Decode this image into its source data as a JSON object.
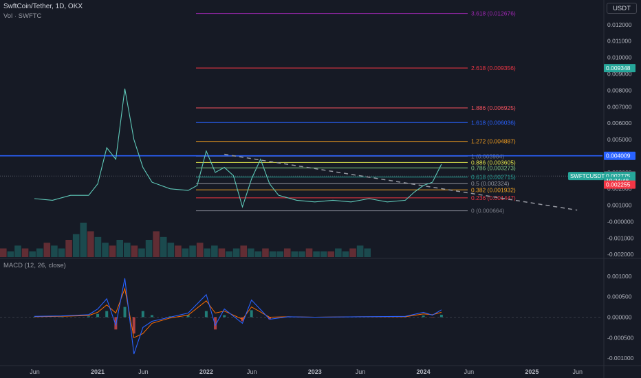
{
  "header": {
    "title": "SwftCoin/Tether, 1D, OKX",
    "volume_label": "Vol · SWFTC",
    "macd_label": "MACD (12, 26, close)",
    "unit": "USDT"
  },
  "colors": {
    "background": "#161a25",
    "price_line": "#5fc9b9",
    "up_candle": "#26a69a",
    "down_candle": "#ef5350",
    "macd_line": "#2962ff",
    "signal_line": "#ff6d00",
    "resistance_line": "#2962ff",
    "target_zone": "#1e5c55",
    "stop_zone": "#5c2b35"
  },
  "chart_data": [
    {
      "type": "line",
      "title": "",
      "ylim": [
        -0.0022,
        0.0135
      ],
      "x_ticks": [
        "Jun",
        "2021",
        "Jun",
        "2022",
        "Jun",
        "2023",
        "Jun",
        "2024",
        "Jun",
        "2025",
        "Jun"
      ],
      "y_ticks": [
        "0.012000",
        "0.011000",
        "0.010000",
        "0.009000",
        "0.008000",
        "0.007000",
        "0.006000",
        "0.005000",
        "0.004000",
        "0.003000",
        "0.002000",
        "0.001000",
        "-0.000000",
        "-0.001000",
        "-0.002000"
      ],
      "y_tick_values": [
        0.012,
        0.011,
        0.01,
        0.009,
        0.008,
        0.007,
        0.006,
        0.005,
        0.004,
        0.003,
        0.002,
        0.001,
        0.0,
        -0.001,
        -0.002
      ],
      "series": [
        {
          "x": [
            "2020-06",
            "2020-08",
            "2020-10",
            "2020-12",
            "2021-01",
            "2021-02",
            "2021-03",
            "2021-04",
            "2021-05",
            "2021-06",
            "2021-07",
            "2021-09",
            "2021-11",
            "2021-12",
            "2022-01",
            "2022-02",
            "2022-03",
            "2022-04",
            "2022-05",
            "2022-06",
            "2022-07",
            "2022-08",
            "2022-09",
            "2022-11",
            "2023-01",
            "2023-03",
            "2023-05",
            "2023-07",
            "2023-09",
            "2023-11",
            "2023-12",
            "2024-01",
            "2024-02",
            "2024-03"
          ],
          "values": [
            0.0014,
            0.0013,
            0.0016,
            0.0016,
            0.0023,
            0.0045,
            0.0038,
            0.0081,
            0.005,
            0.0033,
            0.0024,
            0.002,
            0.0019,
            0.0022,
            0.0043,
            0.003,
            0.0033,
            0.0028,
            0.0009,
            0.0026,
            0.0038,
            0.0023,
            0.0016,
            0.0013,
            0.0012,
            0.0013,
            0.0012,
            0.0014,
            0.0012,
            0.0013,
            0.0018,
            0.0022,
            0.0024,
            0.0035
          ]
        }
      ],
      "fibonacci": [
        {
          "label": "3.618 (0.012676)",
          "value": 0.012676,
          "color": "#9c27b0"
        },
        {
          "label": "2.618 (0.009356)",
          "value": 0.009356,
          "color": "#f23645"
        },
        {
          "label": "1.886 (0.006925)",
          "value": 0.006925,
          "color": "#f7525f"
        },
        {
          "label": "1.618 (0.006036)",
          "value": 0.006036,
          "color": "#2962ff"
        },
        {
          "label": "1.272 (0.004887)",
          "value": 0.004887,
          "color": "#f59f1f"
        },
        {
          "label": "1 (0.003984)",
          "value": 0.003984,
          "color": "#787b86"
        },
        {
          "label": "0.886 (0.003605)",
          "value": 0.003605,
          "color": "#e0e34c"
        },
        {
          "label": "0.786 (0.003273)",
          "value": 0.003273,
          "color": "#81c784"
        },
        {
          "label": "0.618 (0.002715)",
          "value": 0.002715,
          "color": "#26a69a"
        },
        {
          "label": "0.5 (0.002324)",
          "value": 0.002324,
          "color": "#9598a1"
        },
        {
          "label": "0.382 (0.001932)",
          "value": 0.001932,
          "color": "#f5a623"
        },
        {
          "label": "0.236 (0.001447)",
          "value": 0.001447,
          "color": "#f23645"
        },
        {
          "label": "0 (0.000664)",
          "value": 0.000664,
          "color": "#787b86"
        }
      ],
      "horizontal_line": 0.004009,
      "price_tags": [
        {
          "text": "0.009348",
          "value": 0.009348,
          "color": "#26a69a"
        },
        {
          "text": "0.004009",
          "value": 0.004009,
          "color": "#2962ff"
        },
        {
          "text": "0.002820",
          "value": 0.00282,
          "color": "#4c525e"
        },
        {
          "text": "0.002775",
          "value": 0.002775,
          "color": "#26a69a"
        },
        {
          "text": "19:24:48",
          "value": 0.00248,
          "color": "#26a69a"
        },
        {
          "text": "0.002255",
          "value": 0.002255,
          "color": "#f23645"
        }
      ],
      "symbol_tag": "SWFTCUSDT",
      "trendline": {
        "from": [
          "2022-03",
          0.0041
        ],
        "to": [
          "2025-06",
          0.0007
        ]
      },
      "target_zone": {
        "from": "2024-01",
        "to": "2024-11",
        "top": 0.009348,
        "bottom": 0.002775
      },
      "stop_zone": {
        "from": "2024-01",
        "to": "2024-11",
        "top": 0.002775,
        "bottom": 0.002255
      }
    },
    {
      "type": "bar",
      "title": "Vol · SWFTC",
      "series": [
        {
          "values": [
            3,
            2,
            4,
            3,
            2,
            3,
            5,
            4,
            3,
            6,
            8,
            12,
            9,
            7,
            5,
            4,
            6,
            5,
            4,
            3,
            6,
            9,
            7,
            5,
            4,
            3,
            4,
            5,
            3,
            4,
            3,
            2,
            3,
            4,
            3,
            2,
            3,
            2,
            2,
            3,
            2,
            2,
            3,
            2,
            2,
            2,
            3,
            2,
            3,
            4,
            3
          ]
        }
      ]
    },
    {
      "type": "line",
      "title": "MACD (12, 26, close)",
      "ylim": [
        -0.00115,
        0.00115
      ],
      "y_ticks": [
        "0.001000",
        "0.000500",
        "0.000000",
        "-0.000500",
        "-0.001000"
      ],
      "y_tick_values": [
        0.001,
        0.0005,
        0.0,
        -0.0005,
        -0.001
      ],
      "series": [
        {
          "name": "MACD",
          "x": [
            "2020-06",
            "2020-09",
            "2020-12",
            "2021-01",
            "2021-02",
            "2021-03",
            "2021-04",
            "2021-05",
            "2021-06",
            "2021-07",
            "2021-09",
            "2021-11",
            "2022-01",
            "2022-02",
            "2022-03",
            "2022-05",
            "2022-06",
            "2022-08",
            "2022-10",
            "2023-01",
            "2023-06",
            "2023-11",
            "2024-01",
            "2024-02",
            "2024-03"
          ],
          "values": [
            2e-05,
            3e-05,
            6e-05,
            0.0002,
            0.00045,
            -0.0002,
            0.00095,
            -0.0009,
            -0.00025,
            -0.0001,
            0.0,
            0.0001,
            0.00055,
            -0.0002,
            0.0002,
            -0.00015,
            0.00042,
            -5e-05,
            1e-05,
            0.0,
            1e-05,
            2e-05,
            0.00012,
            5e-05,
            0.00018
          ]
        },
        {
          "name": "Signal",
          "x": [
            "2020-06",
            "2020-09",
            "2020-12",
            "2021-01",
            "2021-02",
            "2021-03",
            "2021-04",
            "2021-05",
            "2021-06",
            "2021-07",
            "2021-09",
            "2021-11",
            "2022-01",
            "2022-02",
            "2022-03",
            "2022-05",
            "2022-06",
            "2022-08",
            "2022-10",
            "2023-01",
            "2023-06",
            "2023-11",
            "2024-01",
            "2024-02",
            "2024-03"
          ],
          "values": [
            1e-05,
            2e-05,
            4e-05,
            0.00012,
            0.0003,
            0.0001,
            0.0007,
            -0.0005,
            -0.0004,
            -0.00015,
            -2e-05,
            5e-05,
            0.0004,
            0.0001,
            0.00015,
            -5e-05,
            0.00025,
            0.0,
            1e-05,
            0.0,
            1e-05,
            1e-05,
            8e-05,
            6e-05,
            0.00012
          ]
        }
      ]
    }
  ]
}
